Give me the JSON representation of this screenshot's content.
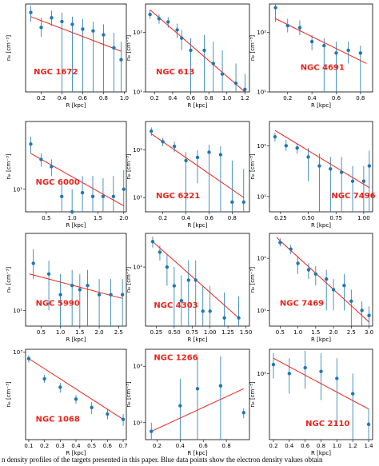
{
  "chart_data": [
    {
      "type": "scatter",
      "title": "NGC 1672",
      "xlabel": "R [kpc]",
      "ylabel": "nₑ [cm⁻³]",
      "log_y": true,
      "color": "#1f77b4",
      "fit_color": "#e8251c",
      "x": [
        0.1,
        0.2,
        0.3,
        0.4,
        0.5,
        0.6,
        0.7,
        0.8,
        0.9,
        0.97
      ],
      "values": [
        300,
        180,
        250,
        220,
        200,
        170,
        160,
        140,
        90,
        60
      ],
      "yerr_low": [
        220,
        130,
        190,
        20,
        20,
        20,
        20,
        20,
        20,
        20
      ],
      "yerr_high": [
        380,
        250,
        320,
        300,
        260,
        240,
        220,
        200,
        150,
        110
      ],
      "fit": {
        "x": [
          0.1,
          0.97
        ],
        "y": [
          260,
          80
        ]
      },
      "xlim": [
        0.05,
        1.02
      ],
      "ylim": [
        20,
        400
      ],
      "xticks": [
        0.2,
        0.4,
        0.6,
        0.8,
        {
          "value": 1,
          "label": "1.0"
        }
      ],
      "yticks": []
    },
    {
      "type": "scatter",
      "title": "NGC 613",
      "xlabel": "R [kpc]",
      "ylabel": "nₑ [cm⁻³]",
      "log_y": true,
      "color": "#1f77b4",
      "fit_color": "#e8251c",
      "x": [
        0.15,
        0.25,
        0.35,
        0.45,
        0.5,
        0.6,
        0.75,
        0.85,
        0.95,
        1.1,
        1.2
      ],
      "values": [
        200,
        170,
        150,
        110,
        80,
        50,
        50,
        30,
        20,
        14,
        11
      ],
      "yerr_low": [
        170,
        140,
        120,
        80,
        50,
        10,
        10,
        10,
        10,
        10,
        10
      ],
      "yerr_high": [
        240,
        200,
        180,
        140,
        110,
        80,
        90,
        70,
        50,
        30,
        20
      ],
      "fit": {
        "x": [
          0.15,
          1.2
        ],
        "y": [
          240,
          10
        ]
      },
      "xlim": [
        0.1,
        1.25
      ],
      "ylim": [
        10,
        300
      ],
      "xticks": [
        0.2,
        0.4,
        0.6,
        0.8,
        {
          "value": 1,
          "label": "1.0"
        },
        1.2
      ],
      "yticks": [
        {
          "value": 100,
          "label": "10²"
        },
        {
          "value": 10,
          "label": "10¹"
        }
      ]
    },
    {
      "type": "scatter",
      "title": "NGC 4691",
      "xlabel": "R [kpc]",
      "ylabel": "nₑ [cm⁻³]",
      "log_y": true,
      "color": "#1f77b4",
      "fit_color": "#e8251c",
      "x": [
        0.1,
        0.2,
        0.3,
        0.4,
        0.5,
        0.6,
        0.7,
        0.8
      ],
      "values": [
        260,
        130,
        120,
        70,
        60,
        45,
        50,
        45
      ],
      "yerr_low": [
        150,
        100,
        90,
        50,
        10,
        10,
        30,
        10
      ],
      "yerr_high": [
        300,
        170,
        160,
        90,
        80,
        70,
        70,
        60
      ],
      "fit": {
        "x": [
          0.1,
          0.85
        ],
        "y": [
          170,
          30
        ]
      },
      "xlim": [
        0.05,
        0.9
      ],
      "ylim": [
        10,
        300
      ],
      "xticks": [
        0.2,
        0.4,
        0.6,
        0.8
      ],
      "yticks": [
        {
          "value": 100,
          "label": "10²"
        },
        {
          "value": 10,
          "label": "10¹"
        }
      ]
    },
    {
      "type": "scatter",
      "title": "NGC 6000",
      "xlabel": "R [kpc]",
      "ylabel": "nₑ [cm⁻³]",
      "log_y": true,
      "color": "#1f77b4",
      "fit_color": "#e8251c",
      "x": [
        0.2,
        0.4,
        0.6,
        0.8,
        1.0,
        1.2,
        1.4,
        1.6,
        1.8,
        2.0
      ],
      "values": [
        40,
        25,
        20,
        8,
        5,
        9,
        8,
        8,
        8,
        10
      ],
      "yerr_low": [
        30,
        20,
        15,
        5,
        5,
        5,
        5,
        5,
        5,
        5
      ],
      "yerr_high": [
        50,
        30,
        25,
        12,
        10,
        15,
        15,
        14,
        15,
        18
      ],
      "fit": {
        "x": [
          0.2,
          2.0
        ],
        "y": [
          30,
          6
        ]
      },
      "xlim": [
        0.1,
        2.05
      ],
      "ylim": [
        5,
        80
      ],
      "xticks": [
        0.5,
        {
          "value": 1,
          "label": "1.0"
        },
        1.5,
        {
          "value": 2,
          "label": "2.0"
        }
      ],
      "yticks": [
        {
          "value": 10,
          "label": "10¹"
        }
      ]
    },
    {
      "type": "scatter",
      "title": "NGC 6221",
      "xlabel": "R [kpc]",
      "ylabel": "nₑ [cm⁻³]",
      "log_y": true,
      "color": "#1f77b4",
      "fit_color": "#e8251c",
      "x": [
        0.1,
        0.2,
        0.3,
        0.4,
        0.5,
        0.6,
        0.7,
        0.8,
        0.9
      ],
      "values": [
        250,
        150,
        120,
        60,
        70,
        90,
        80,
        8,
        8
      ],
      "yerr_low": [
        200,
        120,
        90,
        5,
        20,
        5,
        5,
        5,
        5
      ],
      "yerr_high": [
        300,
        180,
        150,
        90,
        100,
        130,
        120,
        60,
        40
      ],
      "fit": {
        "x": [
          0.1,
          0.9
        ],
        "y": [
          220,
          10
        ]
      },
      "xlim": [
        0.05,
        0.95
      ],
      "ylim": [
        5,
        400
      ],
      "xticks": [
        0.2,
        0.4,
        0.6,
        0.8
      ],
      "yticks": [
        {
          "value": 100,
          "label": "10²"
        },
        {
          "value": 10,
          "label": "10¹"
        }
      ]
    },
    {
      "type": "scatter",
      "title": "NGC 7496",
      "xlabel": "R [kpc]",
      "ylabel": "nₑ [cm⁻³]",
      "log_y": true,
      "color": "#1f77b4",
      "fit_color": "#e8251c",
      "x": [
        0.2,
        0.3,
        0.4,
        0.5,
        0.6,
        0.7,
        0.8,
        0.9,
        1.0,
        1.05
      ],
      "values": [
        150,
        100,
        90,
        60,
        40,
        35,
        30,
        20,
        20,
        40
      ],
      "yerr_low": [
        120,
        80,
        70,
        20,
        5,
        5,
        5,
        5,
        5,
        5
      ],
      "yerr_high": [
        180,
        130,
        110,
        90,
        70,
        60,
        60,
        40,
        40,
        80
      ],
      "fit": {
        "x": [
          0.2,
          1.05
        ],
        "y": [
          200,
          15
        ]
      },
      "xlim": [
        0.15,
        1.08
      ],
      "ylim": [
        5,
        300
      ],
      "xticks": [
        0.25,
        {
          "value": 0.5,
          "label": "0.50"
        },
        {
          "value": 0.75,
          "label": "0.75"
        },
        {
          "value": 1,
          "label": "1.00"
        }
      ],
      "yticks": [
        {
          "value": 100,
          "label": "10²"
        },
        {
          "value": 10,
          "label": "10¹"
        }
      ]
    },
    {
      "type": "scatter",
      "title": "NGC 5990",
      "xlabel": "R [kpc]",
      "ylabel": "nₑ [cm⁻³]",
      "log_y": true,
      "color": "#1f77b4",
      "fit_color": "#e8251c",
      "x": [
        0.3,
        0.7,
        1.0,
        1.3,
        1.5,
        1.7,
        2.0,
        2.3,
        2.6
      ],
      "values": [
        80,
        50,
        20,
        30,
        25,
        30,
        20,
        20,
        20
      ],
      "yerr_low": [
        40,
        10,
        5,
        5,
        5,
        5,
        5,
        5,
        5
      ],
      "yerr_high": [
        150,
        90,
        50,
        60,
        50,
        60,
        40,
        40,
        40
      ],
      "fit": {
        "x": [
          0.2,
          2.6
        ],
        "y": [
          50,
          17
        ]
      },
      "xlim": [
        0.1,
        2.7
      ],
      "ylim": [
        5,
        300
      ],
      "xticks": [
        0.5,
        {
          "value": 1,
          "label": "1.0"
        },
        1.5,
        {
          "value": 2,
          "label": "2.0"
        },
        2.5
      ],
      "yticks": [
        {
          "value": 10,
          "label": "10¹"
        }
      ]
    },
    {
      "type": "scatter",
      "title": "NGC 4303",
      "xlabel": "R [kpc]",
      "ylabel": "nₑ [cm⁻³]",
      "log_y": true,
      "color": "#1f77b4",
      "fit_color": "#e8251c",
      "x": [
        0.2,
        0.3,
        0.4,
        0.5,
        0.6,
        0.7,
        0.8,
        0.9,
        1.0,
        1.2,
        1.4
      ],
      "values": [
        200,
        150,
        100,
        60,
        40,
        70,
        70,
        30,
        30,
        25,
        25
      ],
      "yerr_low": [
        170,
        120,
        60,
        20,
        20,
        20,
        20,
        20,
        20,
        20,
        20
      ],
      "yerr_high": [
        230,
        180,
        140,
        100,
        80,
        120,
        120,
        60,
        60,
        50,
        45
      ],
      "fit": {
        "x": [
          0.2,
          1.4
        ],
        "y": [
          200,
          25
        ]
      },
      "xlim": [
        0.1,
        1.55
      ],
      "ylim": [
        20,
        250
      ],
      "xticks": [
        0.25,
        {
          "value": 0.5,
          "label": "0.50"
        },
        {
          "value": 0.75,
          "label": "0.75"
        },
        {
          "value": 1,
          "label": "1.00"
        },
        1.25,
        {
          "value": 1.5,
          "label": "1.50"
        }
      ],
      "yticks": [
        {
          "value": 100,
          "label": "10²"
        }
      ]
    },
    {
      "type": "scatter",
      "title": "NGC 7469",
      "xlabel": "R [kpc]",
      "ylabel": "nₑ [cm⁻³]",
      "log_y": true,
      "color": "#1f77b4",
      "fit_color": "#e8251c",
      "x": [
        0.5,
        0.8,
        1.0,
        1.3,
        1.5,
        1.8,
        2.0,
        2.3,
        2.5,
        2.8,
        3.0
      ],
      "values": [
        200,
        150,
        80,
        60,
        50,
        40,
        25,
        30,
        15,
        10,
        8
      ],
      "yerr_low": [
        170,
        120,
        50,
        40,
        30,
        10,
        10,
        10,
        5,
        5,
        5
      ],
      "yerr_high": [
        240,
        180,
        110,
        80,
        70,
        60,
        40,
        50,
        25,
        15,
        12
      ],
      "fit": {
        "x": [
          0.4,
          3.0
        ],
        "y": [
          250,
          6
        ]
      },
      "xlim": [
        0.2,
        3.1
      ],
      "ylim": [
        5,
        300
      ],
      "xticks": [
        0.5,
        {
          "value": 1,
          "label": "1.0"
        },
        1.5,
        {
          "value": 2,
          "label": "2.0"
        },
        2.5,
        {
          "value": 3,
          "label": "3.0"
        }
      ],
      "yticks": [
        {
          "value": 100,
          "label": "10²"
        },
        {
          "value": 10,
          "label": "10¹"
        }
      ]
    },
    {
      "type": "scatter",
      "title": "NGC 1068",
      "xlabel": "R [kpc]",
      "ylabel": "nₑ [cm⁻³]",
      "log_y": true,
      "color": "#1f77b4",
      "fit_color": "#e8251c",
      "x": [
        0.1,
        0.2,
        0.3,
        0.4,
        0.5,
        0.6,
        0.7
      ],
      "values": [
        800,
        400,
        300,
        200,
        150,
        120,
        100
      ],
      "yerr_low": [
        700,
        350,
        250,
        170,
        120,
        100,
        80
      ],
      "yerr_high": [
        900,
        460,
        350,
        230,
        180,
        140,
        120
      ],
      "fit": {
        "x": [
          0.1,
          0.7
        ],
        "y": [
          800,
          100
        ]
      },
      "xlim": [
        0.08,
        0.72
      ],
      "ylim": [
        50,
        1100
      ],
      "xticks": [
        0.1,
        0.2,
        0.3,
        0.4,
        0.5,
        0.6,
        0.7
      ],
      "yticks": [
        {
          "value": 1000,
          "label": "10³"
        }
      ]
    },
    {
      "type": "scatter",
      "title": "NGC 1266",
      "xlabel": "R [kpc]",
      "ylabel": "nₑ [cm⁻³]",
      "log_y": true,
      "color": "#1f77b4",
      "fit_color": "#e8251c",
      "x": [
        0.15,
        0.4,
        0.55,
        0.75,
        0.95
      ],
      "values": [
        70,
        200,
        400,
        450,
        150
      ],
      "yerr_low": [
        50,
        50,
        50,
        50,
        120
      ],
      "yerr_high": [
        100,
        600,
        1500,
        1500,
        180
      ],
      "fit": {
        "x": [
          0.15,
          0.95
        ],
        "y": [
          70,
          400
        ]
      },
      "xlim": [
        0.1,
        1.0
      ],
      "ylim": [
        50,
        2000
      ],
      "xticks": [
        0.2,
        0.4,
        0.6,
        0.8
      ],
      "yticks": [
        {
          "value": 1000,
          "label": "10³"
        },
        {
          "value": 100,
          "label": "10²"
        }
      ]
    },
    {
      "type": "scatter",
      "title": "NGC 2110",
      "xlabel": "R [kpc]",
      "ylabel": "nₑ [cm⁻³]",
      "log_y": true,
      "color": "#1f77b4",
      "fit_color": "#e8251c",
      "x": [
        0.2,
        0.4,
        0.6,
        0.8,
        1.0,
        1.2,
        1.4
      ],
      "values": [
        150,
        100,
        130,
        110,
        80,
        40,
        10
      ],
      "yerr_low": [
        80,
        40,
        50,
        30,
        10,
        5,
        5
      ],
      "yerr_high": [
        250,
        200,
        280,
        250,
        200,
        100,
        20
      ],
      "fit": {
        "x": [
          0.2,
          1.4
        ],
        "y": [
          200,
          20
        ]
      },
      "xlim": [
        0.15,
        1.45
      ],
      "ylim": [
        5,
        300
      ],
      "xticks": [
        0.2,
        0.4,
        0.6,
        0.8,
        {
          "value": 1,
          "label": "1.0"
        },
        1.2,
        1.4
      ],
      "yticks": [
        {
          "value": 100,
          "label": "10²"
        }
      ]
    }
  ],
  "caption": "n density profiles of the targets presented in this paper. Blue data points show the electron density values obtain"
}
